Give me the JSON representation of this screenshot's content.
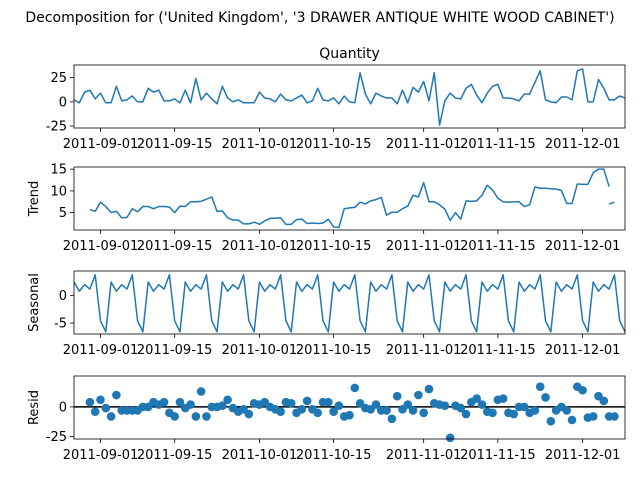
{
  "figure": {
    "title": "Decomposition for ('United Kingdom', '3 DRAWER ANTIQUE WHITE WOOD CABINET')"
  },
  "colors": {
    "line": "#1f77b4",
    "baseline": "#000000",
    "axis": "#000000",
    "background": "#ffffff"
  },
  "chart_data": [
    {
      "type": "line",
      "title": "Quantity",
      "ylabel": "",
      "xlim": [
        "2011-08-27",
        "2011-12-09"
      ],
      "ylim": [
        -27,
        38
      ],
      "yticks": [
        -25,
        0,
        25
      ],
      "xticks": [
        "2011-09-01",
        "2011-09-15",
        "2011-10-01",
        "2011-10-15",
        "2011-11-01",
        "2011-11-15",
        "2011-12-01"
      ],
      "series": [
        {
          "x": [
            "2011-08-27",
            "2011-08-28",
            "2011-08-29",
            "2011-08-30",
            "2011-08-31",
            "2011-09-01",
            "2011-09-02",
            "2011-09-03",
            "2011-09-04",
            "2011-09-05",
            "2011-09-06",
            "2011-09-07",
            "2011-09-08",
            "2011-09-09",
            "2011-09-10",
            "2011-09-11",
            "2011-09-12",
            "2011-09-13",
            "2011-09-14",
            "2011-09-15",
            "2011-09-16",
            "2011-09-17",
            "2011-09-18",
            "2011-09-19",
            "2011-09-20",
            "2011-09-21",
            "2011-09-22",
            "2011-09-23",
            "2011-09-24",
            "2011-09-25",
            "2011-09-26",
            "2011-09-27",
            "2011-09-28",
            "2011-09-29",
            "2011-09-30",
            "2011-10-01",
            "2011-10-02",
            "2011-10-03",
            "2011-10-04",
            "2011-10-05",
            "2011-10-06",
            "2011-10-07",
            "2011-10-08",
            "2011-10-09",
            "2011-10-10",
            "2011-10-11",
            "2011-10-12",
            "2011-10-13",
            "2011-10-14",
            "2011-10-15",
            "2011-10-16",
            "2011-10-17",
            "2011-10-18",
            "2011-10-19",
            "2011-10-20",
            "2011-10-21",
            "2011-10-22",
            "2011-10-23",
            "2011-10-24",
            "2011-10-25",
            "2011-10-26",
            "2011-10-27",
            "2011-10-28",
            "2011-10-29",
            "2011-10-30",
            "2011-10-31",
            "2011-11-01",
            "2011-11-02",
            "2011-11-03",
            "2011-11-04",
            "2011-11-05",
            "2011-11-06",
            "2011-11-07",
            "2011-11-08",
            "2011-11-09",
            "2011-11-10",
            "2011-11-11",
            "2011-11-12",
            "2011-11-13",
            "2011-11-14",
            "2011-11-15",
            "2011-11-16",
            "2011-11-17",
            "2011-11-18",
            "2011-11-19",
            "2011-11-20",
            "2011-11-21",
            "2011-11-22",
            "2011-11-23",
            "2011-11-24",
            "2011-11-25",
            "2011-11-26",
            "2011-11-27",
            "2011-11-28",
            "2011-11-29",
            "2011-11-30",
            "2011-12-01",
            "2011-12-02",
            "2011-12-03",
            "2011-12-04",
            "2011-12-05",
            "2011-12-06",
            "2011-12-07",
            "2011-12-08",
            "2011-12-09"
          ],
          "y": [
            2,
            -1,
            10,
            12,
            3,
            9,
            -1,
            -1,
            16,
            1,
            2,
            6,
            0,
            0,
            14,
            10,
            12,
            1,
            1,
            3,
            -1,
            12,
            -1,
            24,
            2,
            9,
            3,
            -2,
            16,
            4,
            0,
            2,
            -1,
            -1,
            -1,
            10,
            4,
            3,
            0,
            8,
            2,
            1,
            4,
            7,
            -1,
            1,
            14,
            2,
            1,
            4,
            -2,
            6,
            0,
            -1,
            30,
            8,
            -2,
            9,
            6,
            4,
            4,
            -2,
            12,
            -1,
            15,
            10,
            21,
            1,
            30,
            -24,
            1,
            9,
            4,
            3,
            14,
            18,
            7,
            -1,
            9,
            16,
            18,
            4,
            4,
            3,
            1,
            8,
            8,
            20,
            32,
            2,
            0,
            -1,
            5,
            5,
            2,
            32,
            34,
            0,
            0,
            23,
            14,
            2,
            2,
            6,
            4
          ]
        }
      ]
    },
    {
      "type": "line",
      "title": "",
      "ylabel": "Trend",
      "xlim": [
        "2011-08-27",
        "2011-12-09"
      ],
      "ylim": [
        1,
        15.5
      ],
      "yticks": [
        5,
        10,
        15
      ],
      "xticks": [
        "2011-09-01",
        "2011-09-15",
        "2011-10-01",
        "2011-10-15",
        "2011-11-01",
        "2011-11-15",
        "2011-12-01"
      ],
      "series": [
        {
          "x": [
            "2011-08-30",
            "2011-08-31",
            "2011-09-01",
            "2011-09-02",
            "2011-09-03",
            "2011-09-04",
            "2011-09-05",
            "2011-09-06",
            "2011-09-07",
            "2011-09-08",
            "2011-09-09",
            "2011-09-10",
            "2011-09-11",
            "2011-09-12",
            "2011-09-13",
            "2011-09-14",
            "2011-09-15",
            "2011-09-16",
            "2011-09-17",
            "2011-09-18",
            "2011-09-19",
            "2011-09-20",
            "2011-09-21",
            "2011-09-22",
            "2011-09-23",
            "2011-09-24",
            "2011-09-25",
            "2011-09-26",
            "2011-09-27",
            "2011-09-28",
            "2011-09-29",
            "2011-09-30",
            "2011-10-01",
            "2011-10-02",
            "2011-10-03",
            "2011-10-04",
            "2011-10-05",
            "2011-10-06",
            "2011-10-07",
            "2011-10-08",
            "2011-10-09",
            "2011-10-10",
            "2011-10-11",
            "2011-10-12",
            "2011-10-13",
            "2011-10-14",
            "2011-10-15",
            "2011-10-16",
            "2011-10-17",
            "2011-10-18",
            "2011-10-19",
            "2011-10-20",
            "2011-10-21",
            "2011-10-22",
            "2011-10-23",
            "2011-10-24",
            "2011-10-25",
            "2011-10-26",
            "2011-10-27",
            "2011-10-28",
            "2011-10-29",
            "2011-10-30",
            "2011-10-31",
            "2011-11-01",
            "2011-11-02",
            "2011-11-03",
            "2011-11-04",
            "2011-11-05",
            "2011-11-06",
            "2011-11-07",
            "2011-11-08",
            "2011-11-09",
            "2011-11-10",
            "2011-11-11",
            "2011-11-12",
            "2011-11-13",
            "2011-11-14",
            "2011-11-15",
            "2011-11-16",
            "2011-11-17",
            "2011-11-18",
            "2011-11-19",
            "2011-11-20",
            "2011-11-21",
            "2011-11-22",
            "2011-11-23",
            "2011-11-24",
            "2011-11-25",
            "2011-11-26",
            "2011-11-27",
            "2011-11-28",
            "2011-11-29",
            "2011-11-30",
            "2011-12-01",
            "2011-12-02",
            "2011-12-03",
            "2011-12-04",
            "2011-12-05",
            "2011-12-06"
          ],
          "y": [
            5.7,
            5.3,
            7.4,
            6.4,
            5.0,
            5.3,
            3.8,
            3.9,
            5.9,
            5.2,
            6.4,
            6.4,
            5.9,
            6.4,
            6.4,
            6.3,
            5.0,
            6.5,
            6.4,
            7.5,
            7.5,
            7.6,
            8.1,
            8.6,
            5.3,
            5.4,
            3.8,
            3.3,
            3.3,
            2.4,
            2.4,
            2.8,
            2.3,
            3.1,
            3.7,
            3.7,
            3.8,
            2.3,
            2.3,
            3.4,
            3.5,
            2.5,
            2.6,
            2.5,
            2.6,
            3.5,
            1.7,
            1.6,
            5.9,
            6.1,
            6.2,
            7.4,
            7.0,
            7.7,
            8.0,
            8.5,
            4.4,
            5.1,
            5.1,
            5.9,
            6.5,
            9.0,
            8.6,
            11.9,
            7.5,
            7.5,
            6.8,
            5.8,
            3.2,
            5.0,
            3.5,
            7.7,
            7.6,
            7.7,
            9.0,
            11.3,
            10.2,
            8.3,
            7.5,
            7.4,
            7.5,
            7.5,
            6.4,
            6.8,
            10.9,
            10.6,
            10.6,
            10.5,
            10.4,
            10.1,
            7.1,
            7.1,
            11.6,
            11.5,
            11.5,
            14.2,
            15.0,
            15.0,
            11.0
          ]
        },
        {
          "x": [
            "2011-12-06",
            "2011-12-07"
          ],
          "y": [
            7.0,
            7.4
          ]
        }
      ]
    },
    {
      "type": "line",
      "title": "",
      "ylabel": "Seasonal",
      "xlim": [
        "2011-08-27",
        "2011-12-09"
      ],
      "ylim": [
        -7,
        4.5
      ],
      "yticks": [
        -5,
        0
      ],
      "xticks": [
        "2011-09-01",
        "2011-09-15",
        "2011-10-01",
        "2011-10-15",
        "2011-11-01",
        "2011-11-15",
        "2011-12-01"
      ],
      "pattern": [
        2.5,
        0.8,
        2.0,
        1.2,
        3.8,
        -4.6,
        -6.6
      ],
      "start": "2011-08-27",
      "end": "2011-12-09"
    },
    {
      "type": "scatter",
      "title": "",
      "ylabel": "Resid",
      "xlim": [
        "2011-08-27",
        "2011-12-09"
      ],
      "ylim": [
        -27,
        26
      ],
      "yticks": [
        -25,
        0
      ],
      "xticks": [
        "2011-09-01",
        "2011-09-15",
        "2011-10-01",
        "2011-10-15",
        "2011-11-01",
        "2011-11-15",
        "2011-12-01"
      ],
      "baseline": 0,
      "points": {
        "x": [
          "2011-08-30",
          "2011-08-31",
          "2011-09-01",
          "2011-09-02",
          "2011-09-03",
          "2011-09-04",
          "2011-09-05",
          "2011-09-06",
          "2011-09-07",
          "2011-09-08",
          "2011-09-09",
          "2011-09-10",
          "2011-09-11",
          "2011-09-12",
          "2011-09-13",
          "2011-09-14",
          "2011-09-15",
          "2011-09-16",
          "2011-09-17",
          "2011-09-18",
          "2011-09-19",
          "2011-09-20",
          "2011-09-21",
          "2011-09-22",
          "2011-09-23",
          "2011-09-24",
          "2011-09-25",
          "2011-09-26",
          "2011-09-27",
          "2011-09-28",
          "2011-09-29",
          "2011-09-30",
          "2011-10-01",
          "2011-10-02",
          "2011-10-03",
          "2011-10-04",
          "2011-10-05",
          "2011-10-06",
          "2011-10-07",
          "2011-10-08",
          "2011-10-09",
          "2011-10-10",
          "2011-10-11",
          "2011-10-12",
          "2011-10-13",
          "2011-10-14",
          "2011-10-15",
          "2011-10-16",
          "2011-10-17",
          "2011-10-18",
          "2011-10-19",
          "2011-10-20",
          "2011-10-21",
          "2011-10-22",
          "2011-10-23",
          "2011-10-24",
          "2011-10-25",
          "2011-10-26",
          "2011-10-27",
          "2011-10-28",
          "2011-10-29",
          "2011-10-30",
          "2011-10-31",
          "2011-11-01",
          "2011-11-02",
          "2011-11-03",
          "2011-11-04",
          "2011-11-05",
          "2011-11-06",
          "2011-11-07",
          "2011-11-08",
          "2011-11-09",
          "2011-11-10",
          "2011-11-11",
          "2011-11-12",
          "2011-11-13",
          "2011-11-14",
          "2011-11-15",
          "2011-11-16",
          "2011-11-17",
          "2011-11-18",
          "2011-11-19",
          "2011-11-20",
          "2011-11-21",
          "2011-11-22",
          "2011-11-23",
          "2011-11-24",
          "2011-11-25",
          "2011-11-26",
          "2011-11-27",
          "2011-11-28",
          "2011-11-29",
          "2011-11-30",
          "2011-12-01",
          "2011-12-02",
          "2011-12-03",
          "2011-12-04",
          "2011-12-05",
          "2011-12-06",
          "2011-12-07"
        ],
        "y": [
          4,
          -4,
          6,
          -1,
          -8,
          10,
          -3,
          -3,
          -3,
          -3,
          0,
          0,
          4,
          2,
          4,
          -5,
          -8,
          4,
          -1,
          2,
          -8,
          13,
          -8,
          0,
          0,
          1,
          6,
          -1,
          -4,
          -2,
          -6,
          3,
          2,
          4,
          0,
          -2,
          -4,
          4,
          3,
          -5,
          -2,
          5,
          -2,
          -5,
          4,
          4,
          -4,
          1,
          -8,
          -7,
          16,
          3,
          -1,
          -2,
          2,
          -3,
          -3,
          -10,
          9,
          -2,
          2,
          -3,
          10,
          -5,
          15,
          3,
          2,
          1,
          -26,
          1,
          -1,
          -6,
          4,
          7,
          2,
          -4,
          -5,
          6,
          7,
          -5,
          -6,
          0,
          0,
          -5,
          -3,
          17,
          8,
          -12,
          -3,
          0,
          -3,
          -11,
          17,
          14,
          -9,
          -8,
          9,
          5,
          -8,
          -8
        ]
      }
    }
  ]
}
